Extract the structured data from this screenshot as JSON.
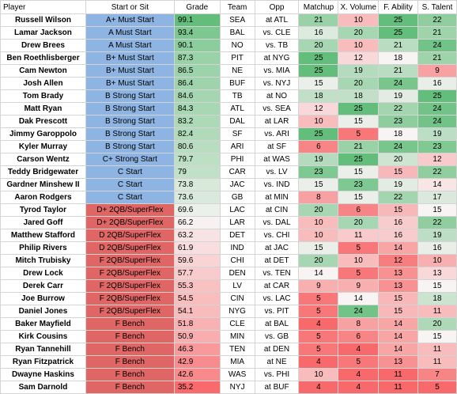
{
  "headers": {
    "player": "Player",
    "start": "Start or Sit",
    "grade": "Grade",
    "team": "Team",
    "opp": "Opp",
    "matchup": "Matchup",
    "volume": "X. Volume",
    "ability": "F. Ability",
    "talent": "S. Talent"
  },
  "colors": {
    "start_blue": "#8db4e2",
    "start_red": "#e06666",
    "grade_green_strong": "#63be7b",
    "grade_light": "#f8f4f4",
    "grade_red_strong": "#f8696b"
  },
  "rows": [
    {
      "player": "Russell Wilson",
      "start": "A+ Must Start",
      "grade": "99.1",
      "team": "SEA",
      "opp": "at ATL",
      "matchup": 21,
      "volume": 10,
      "ability": 25,
      "talent": 22
    },
    {
      "player": "Lamar Jackson",
      "start": "A Must Start",
      "grade": "93.4",
      "team": "BAL",
      "opp": "vs. CLE",
      "matchup": 16,
      "volume": 20,
      "ability": 25,
      "talent": 21
    },
    {
      "player": "Drew Brees",
      "start": "A Must Start",
      "grade": "90.1",
      "team": "NO",
      "opp": "vs. TB",
      "matchup": 20,
      "volume": 10,
      "ability": 21,
      "talent": 24
    },
    {
      "player": "Ben Roethlisberger",
      "start": "B+ Must Start",
      "grade": "87.3",
      "team": "PIT",
      "opp": "at NYG",
      "matchup": 25,
      "volume": 12,
      "ability": 18,
      "talent": 21
    },
    {
      "player": "Cam Newton",
      "start": "B+ Must Start",
      "grade": "86.5",
      "team": "NE",
      "opp": "vs. MIA",
      "matchup": 25,
      "volume": 19,
      "ability": 21,
      "talent": 9
    },
    {
      "player": "Josh Allen",
      "start": "B+ Must Start",
      "grade": "86.4",
      "team": "BUF",
      "opp": "vs. NYJ",
      "matchup": 15,
      "volume": 20,
      "ability": 24,
      "talent": 16
    },
    {
      "player": "Tom Brady",
      "start": "B Strong Start",
      "grade": "84.6",
      "team": "TB",
      "opp": "at NO",
      "matchup": 18,
      "volume": 18,
      "ability": 19,
      "talent": 25
    },
    {
      "player": "Matt Ryan",
      "start": "B Strong Start",
      "grade": "84.3",
      "team": "ATL",
      "opp": "vs. SEA",
      "matchup": 12,
      "volume": 25,
      "ability": 22,
      "talent": 24
    },
    {
      "player": "Dak Prescott",
      "start": "B Strong Start",
      "grade": "83.2",
      "team": "DAL",
      "opp": "at LAR",
      "matchup": 10,
      "volume": 15,
      "ability": 23,
      "talent": 24
    },
    {
      "player": "Jimmy Garoppolo",
      "start": "B Strong Start",
      "grade": "82.4",
      "team": "SF",
      "opp": "vs. ARI",
      "matchup": 25,
      "volume": 5,
      "ability": 18,
      "talent": 19
    },
    {
      "player": "Kyler Murray",
      "start": "B Strong Start",
      "grade": "80.6",
      "team": "ARI",
      "opp": "at SF",
      "matchup": 6,
      "volume": 21,
      "ability": 24,
      "talent": 23
    },
    {
      "player": "Carson Wentz",
      "start": "C+ Strong Start",
      "grade": "79.7",
      "team": "PHI",
      "opp": "at WAS",
      "matchup": 19,
      "volume": 25,
      "ability": 20,
      "talent": 12
    },
    {
      "player": "Teddy Bridgewater",
      "start": "C Start",
      "grade": "79",
      "team": "CAR",
      "opp": "vs. LV",
      "matchup": 23,
      "volume": 15,
      "ability": 15,
      "talent": 22
    },
    {
      "player": "Gardner Minshew II",
      "start": "C Start",
      "grade": "73.8",
      "team": "JAC",
      "opp": "vs. IND",
      "matchup": 15,
      "volume": 23,
      "ability": 19,
      "talent": 14
    },
    {
      "player": "Aaron Rodgers",
      "start": "C Start",
      "grade": "73.6",
      "team": "GB",
      "opp": "at MIN",
      "matchup": 8,
      "volume": 15,
      "ability": 22,
      "talent": 17
    },
    {
      "player": "Tyrod Taylor",
      "start": "D+ 2QB/SuperFlex",
      "grade": "69.6",
      "team": "LAC",
      "opp": "at CIN",
      "matchup": 20,
      "volume": 6,
      "ability": 15,
      "talent": 15
    },
    {
      "player": "Jared Goff",
      "start": "D+ 2QB/SuperFlex",
      "grade": "66.2",
      "team": "LAR",
      "opp": "vs. DAL",
      "matchup": 10,
      "volume": 20,
      "ability": 16,
      "talent": 22
    },
    {
      "player": "Matthew Stafford",
      "start": "D 2QB/SuperFlex",
      "grade": "63.2",
      "team": "DET",
      "opp": "vs. CHI",
      "matchup": 10,
      "volume": 11,
      "ability": 16,
      "talent": 19
    },
    {
      "player": "Philip Rivers",
      "start": "D 2QB/SuperFlex",
      "grade": "61.9",
      "team": "IND",
      "opp": "at JAC",
      "matchup": 15,
      "volume": 5,
      "ability": 14,
      "talent": 16
    },
    {
      "player": "Mitch Trubisky",
      "start": "F 2QB/SuperFlex",
      "grade": "59.6",
      "team": "CHI",
      "opp": "at DET",
      "matchup": 20,
      "volume": 10,
      "ability": 12,
      "talent": 10
    },
    {
      "player": "Drew Lock",
      "start": "F 2QB/SuperFlex",
      "grade": "57.7",
      "team": "DEN",
      "opp": "vs. TEN",
      "matchup": 14,
      "volume": 5,
      "ability": 13,
      "talent": 13
    },
    {
      "player": "Derek Carr",
      "start": "F 2QB/SuperFlex",
      "grade": "55.3",
      "team": "LV",
      "opp": "at CAR",
      "matchup": 9,
      "volume": 9,
      "ability": 13,
      "talent": 15
    },
    {
      "player": "Joe Burrow",
      "start": "F 2QB/SuperFlex",
      "grade": "54.5",
      "team": "CIN",
      "opp": "vs. LAC",
      "matchup": 5,
      "volume": 14,
      "ability": 15,
      "talent": 18
    },
    {
      "player": "Daniel Jones",
      "start": "F 2QB/SuperFlex",
      "grade": "54.1",
      "team": "NYG",
      "opp": "vs. PIT",
      "matchup": 5,
      "volume": 24,
      "ability": 15,
      "talent": 11
    },
    {
      "player": "Baker Mayfield",
      "start": "F Bench",
      "grade": "51.8",
      "team": "CLE",
      "opp": "at BAL",
      "matchup": 4,
      "volume": 8,
      "ability": 14,
      "talent": 20
    },
    {
      "player": "Kirk Cousins",
      "start": "F Bench",
      "grade": "50.9",
      "team": "MIN",
      "opp": "vs. GB",
      "matchup": 5,
      "volume": 6,
      "ability": 14,
      "talent": 15
    },
    {
      "player": "Ryan Tannehill",
      "start": "F Bench",
      "grade": "46.3",
      "team": "TEN",
      "opp": "at DEN",
      "matchup": 5,
      "volume": 4,
      "ability": 14,
      "talent": 11
    },
    {
      "player": "Ryan Fitzpatrick",
      "start": "F Bench",
      "grade": "42.9",
      "team": "MIA",
      "opp": "at NE",
      "matchup": 4,
      "volume": 5,
      "ability": 13,
      "talent": 11
    },
    {
      "player": "Dwayne Haskins",
      "start": "F Bench",
      "grade": "42.6",
      "team": "WAS",
      "opp": "vs. PHI",
      "matchup": 10,
      "volume": 4,
      "ability": 11,
      "talent": 7
    },
    {
      "player": "Sam Darnold",
      "start": "F Bench",
      "grade": "35.2",
      "team": "NYJ",
      "opp": "at BUF",
      "matchup": 4,
      "volume": 4,
      "ability": 11,
      "talent": 5
    }
  ]
}
